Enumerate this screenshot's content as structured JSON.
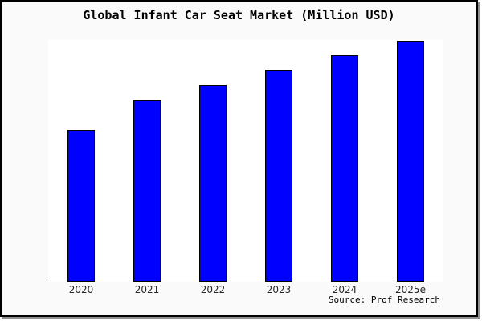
{
  "frame": {
    "background_color": "#fafafa",
    "border_color": "#000000",
    "shadow_color": "#909090"
  },
  "chart_data": {
    "type": "bar",
    "title": "Global Infant Car Seat Market (Million USD)",
    "categories": [
      "2020",
      "2021",
      "2022",
      "2023",
      "2024",
      "2025e"
    ],
    "values": [
      189,
      226,
      245,
      264,
      282,
      300
    ],
    "values_note_units": "relative estimated values (no y-axis labels shown in figure)",
    "xlabel": "",
    "ylabel": "",
    "ylim": [
      0,
      301
    ],
    "grid": false,
    "legend": false,
    "y_axis_visible": false,
    "bar_color": "#0000ff",
    "bar_border_color": "#000000",
    "axis_line_color": "#000000",
    "plot_background": "#ffffff"
  },
  "footer": {
    "source_label": "Source: Prof Research"
  }
}
